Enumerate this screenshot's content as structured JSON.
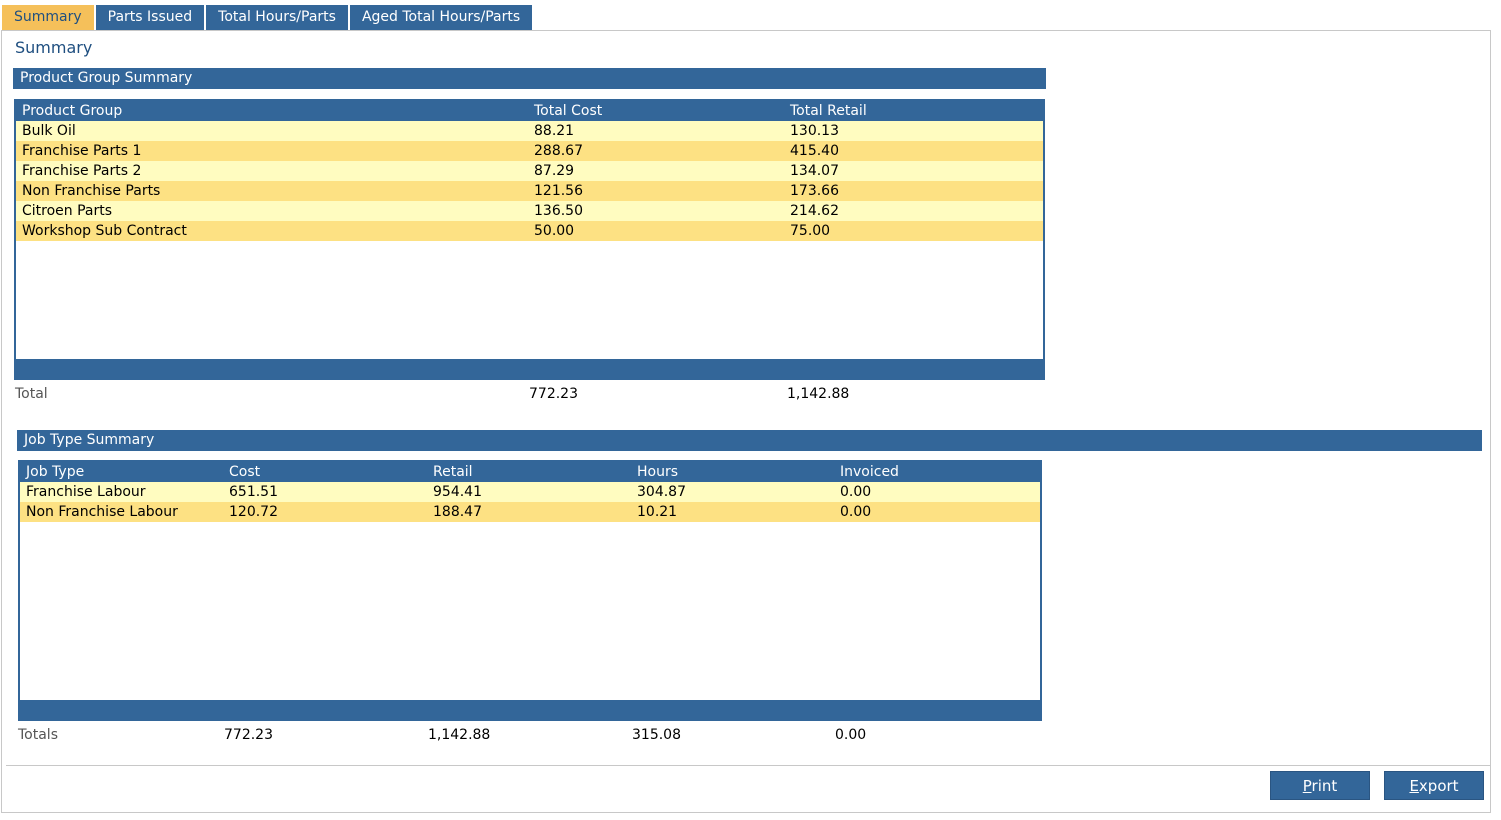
{
  "tabs": [
    {
      "label": "Summary",
      "active": true
    },
    {
      "label": "Parts Issued",
      "active": false
    },
    {
      "label": "Total Hours/Parts",
      "active": false
    },
    {
      "label": "Aged Total Hours/Parts",
      "active": false
    }
  ],
  "page_title": "Summary",
  "product_group": {
    "section_title": "Product Group Summary",
    "columns": [
      "Product Group",
      "Total Cost",
      "Total Retail"
    ],
    "rows": [
      [
        "Bulk Oil",
        "88.21",
        "130.13"
      ],
      [
        "Franchise Parts 1",
        "288.67",
        "415.40"
      ],
      [
        "Franchise Parts 2",
        "87.29",
        "134.07"
      ],
      [
        "Non Franchise Parts",
        "121.56",
        "173.66"
      ],
      [
        "Citroen Parts",
        "136.50",
        "214.62"
      ],
      [
        "Workshop Sub Contract",
        "50.00",
        "75.00"
      ]
    ],
    "total_label": "Total",
    "total_cost": "772.23",
    "total_retail": "1,142.88"
  },
  "job_type": {
    "section_title": "Job Type Summary",
    "columns": [
      "Job Type",
      "Cost",
      "Retail",
      "Hours",
      "Invoiced"
    ],
    "rows": [
      [
        "Franchise Labour",
        "651.51",
        "954.41",
        "304.87",
        "0.00"
      ],
      [
        "Non Franchise Labour",
        "120.72",
        "188.47",
        "10.21",
        "0.00"
      ]
    ],
    "totals_label": "Totals",
    "total_cost": "772.23",
    "total_retail": "1,142.88",
    "total_hours": "315.08",
    "total_invoiced": "0.00"
  },
  "buttons": {
    "print_first": "P",
    "print_rest": "rint",
    "export_first": "E",
    "export_rest": "xport"
  }
}
